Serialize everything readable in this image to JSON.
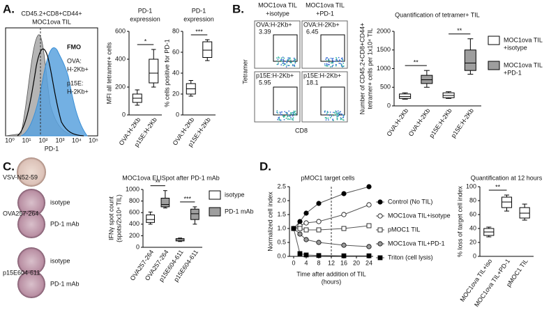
{
  "panels": [
    "A.",
    "B.",
    "C.",
    "D."
  ],
  "histogram": {
    "title": [
      "CD45.2+CD8+CD44+",
      "MOC1ova TIL"
    ],
    "xlabel": "PD-1",
    "xtick_labels": [
      "10⁰",
      "10¹",
      "10²",
      "10³",
      "10⁴",
      "10⁵"
    ],
    "legend": [
      {
        "lines": [
          "FMO"
        ],
        "color": "#000000"
      },
      {
        "lines": [
          "OVA:",
          "H-2Kb+"
        ],
        "color": "#8a8a8a"
      },
      {
        "lines": [
          "p15E:",
          "H-2Kb+"
        ],
        "color": "#3a8fd6"
      }
    ]
  },
  "flow": {
    "headers": [
      [
        "MOC1ova TIL",
        "+isotype"
      ],
      [
        "MOC1ova TIL",
        "+PD-1"
      ]
    ],
    "ylabel": "Tetramer",
    "xlabel": "CD8",
    "gates": [
      {
        "label": "OVA:H-2Kb+",
        "value": 3.39
      },
      {
        "label": "OVA:H-2Kb+",
        "value": 6.45
      },
      {
        "label": "p15E:H-2Kb+",
        "value": 5.95
      },
      {
        "label": "p15E:H-2Kb+",
        "value": 18.1
      }
    ]
  },
  "elispot": {
    "rows": [
      "VSV-N52-59",
      "OVA257-264",
      "p15E604-611"
    ],
    "wells": [
      "isotype",
      "PD-1 mAb",
      "isotype",
      "PD-1 mAb"
    ]
  },
  "chart_data": [
    {
      "type": "box",
      "title": [
        "PD-1",
        "expression"
      ],
      "ylabel": [
        "MFI all tetramer+ cells"
      ],
      "categories": [
        "OVA:H-2Kb",
        "p15E:H-2Kb"
      ],
      "boxes": [
        {
          "min": 70,
          "q1": 90,
          "median": 120,
          "q3": 150,
          "max": 180
        },
        {
          "min": 200,
          "q1": 230,
          "median": 300,
          "q3": 400,
          "max": 470
        }
      ],
      "colors": [
        "#ffffff",
        "#ffffff"
      ],
      "ylim": [
        0,
        600
      ],
      "yticks": [
        0,
        200,
        400,
        600
      ],
      "annotations": [
        {
          "text": "*",
          "between": [
            0,
            1
          ]
        }
      ]
    },
    {
      "type": "box",
      "title": [
        "PD-1",
        "expression"
      ],
      "ylabel": [
        "% cells positive for PD-1"
      ],
      "categories": [
        "OVA:H-2Kb",
        "p15E:H-2Kb"
      ],
      "boxes": [
        {
          "min": 18,
          "q1": 20,
          "median": 25,
          "q3": 30,
          "max": 33
        },
        {
          "min": 52,
          "q1": 55,
          "median": 62,
          "q3": 70,
          "max": 72
        }
      ],
      "colors": [
        "#ffffff",
        "#ffffff"
      ],
      "ylim": [
        0,
        80
      ],
      "yticks": [
        0,
        20,
        40,
        60,
        80
      ],
      "annotations": [
        {
          "text": "***",
          "between": [
            0,
            1
          ]
        }
      ]
    },
    {
      "type": "box",
      "title": [
        "Quantification of tetramer+ TIL"
      ],
      "ylabel": [
        "Number of CD45.2+CD8+CD44+",
        "tetramer+ cells per 1x10⁴ TIL"
      ],
      "categories": [
        "OVA:H-2Kb",
        "OVA:H-2Kb",
        "p15E:H-2Kb",
        "p15E:H-2Kb"
      ],
      "boxes": [
        {
          "min": 180,
          "q1": 200,
          "median": 250,
          "q3": 320,
          "max": 350
        },
        {
          "min": 500,
          "q1": 600,
          "median": 700,
          "q3": 820,
          "max": 950
        },
        {
          "min": 200,
          "q1": 220,
          "median": 280,
          "q3": 350,
          "max": 380
        },
        {
          "min": 850,
          "q1": 950,
          "median": 1150,
          "q3": 1500,
          "max": 1800
        }
      ],
      "colors": [
        "#ffffff",
        "#9e9e9e",
        "#ffffff",
        "#9e9e9e"
      ],
      "ylim": [
        0,
        2000
      ],
      "yticks": [
        0,
        500,
        1000,
        1500,
        2000
      ],
      "annotations": [
        {
          "text": "**",
          "between": [
            0,
            1
          ]
        },
        {
          "text": "**",
          "between": [
            2,
            3
          ]
        }
      ],
      "legend": [
        {
          "lines": [
            "MOC1ova TIL",
            "+isotype"
          ],
          "color": "#ffffff"
        },
        {
          "lines": [
            "MOC1ova TIL",
            "+PD-1"
          ],
          "color": "#9e9e9e"
        }
      ]
    },
    {
      "type": "box",
      "title": [
        "MOC1ova ELISpot after PD-1 mAb"
      ],
      "ylabel": [
        "IFNγ spot count",
        "(spots/2x10⁴ TIL)"
      ],
      "categories": [
        "OVA257-264",
        "OVA257-264",
        "p15E604-611",
        "p15E604-611"
      ],
      "boxes": [
        {
          "min": 400,
          "q1": 430,
          "median": 480,
          "q3": 560,
          "max": 610
        },
        {
          "min": 680,
          "q1": 700,
          "median": 740,
          "q3": 850,
          "max": 980
        },
        {
          "min": 100,
          "q1": 110,
          "median": 130,
          "q3": 150,
          "max": 160
        },
        {
          "min": 400,
          "q1": 480,
          "median": 580,
          "q3": 660,
          "max": 700
        }
      ],
      "colors": [
        "#ffffff",
        "#9e9e9e",
        "#ffffff",
        "#9e9e9e"
      ],
      "ylim": [
        0,
        1000
      ],
      "yticks": [
        0,
        200,
        400,
        600,
        800,
        1000
      ],
      "annotations": [
        {
          "text": "**",
          "between": [
            0,
            1
          ]
        },
        {
          "text": "***",
          "between": [
            2,
            3
          ]
        }
      ],
      "legend": [
        {
          "lines": [
            "isotype"
          ],
          "color": "#ffffff"
        },
        {
          "lines": [
            "PD-1 mAb"
          ],
          "color": "#9e9e9e"
        }
      ]
    },
    {
      "type": "line",
      "title": [
        "pMOC1 target cells"
      ],
      "ylabel": [
        "Normalized cell index"
      ],
      "xlabel": [
        "Time after addition of TIL",
        "(hours)"
      ],
      "x": [
        0,
        2,
        4,
        8,
        16,
        24
      ],
      "xlim": [
        0,
        24
      ],
      "xticks": [
        0,
        4,
        8,
        12,
        16,
        20,
        24
      ],
      "ylim": [
        0,
        2.5
      ],
      "yticks": [
        {
          "value": 0,
          "label": "0.0"
        },
        0.5,
        {
          "value": 1,
          "label": "1.0"
        },
        1.5,
        {
          "value": 2,
          "label": "2.0"
        },
        2.5
      ],
      "vline": 12,
      "series": [
        {
          "name": "Control (No TIL)",
          "color": "#000000",
          "marker": "circle",
          "values": [
            1.0,
            1.25,
            1.55,
            1.9,
            2.25,
            2.5
          ]
        },
        {
          "name": "MOC1ova TIL+isotype",
          "color": "#ffffff",
          "marker": "circle",
          "values": [
            1.0,
            1.1,
            1.2,
            1.25,
            1.5,
            1.85
          ]
        },
        {
          "name": "pMOC1 TIL",
          "color": "#ffffff",
          "marker": "square",
          "values": [
            1.0,
            1.0,
            0.95,
            0.95,
            1.0,
            1.1
          ]
        },
        {
          "name": "MOC1ova TIL+PD-1",
          "color": "#9a9a9a",
          "marker": "circle",
          "values": [
            1.0,
            0.8,
            0.6,
            0.5,
            0.4,
            0.35
          ]
        },
        {
          "name": "Triton (cell lysis)",
          "color": "#000000",
          "marker": "square",
          "values": [
            1.0,
            0.1,
            0.05,
            0.03,
            0.02,
            0.02
          ]
        }
      ]
    },
    {
      "type": "box",
      "title": [
        "Quantification at 12 hours"
      ],
      "ylabel": [
        "% loss of target cell index"
      ],
      "categories": [
        "MOC1ova TIL+iso",
        "MOC1ova TIL+PD-1",
        "pMOC1 TIL"
      ],
      "boxes": [
        {
          "min": 28,
          "q1": 30,
          "median": 35,
          "q3": 40,
          "max": 42
        },
        {
          "min": 65,
          "q1": 70,
          "median": 78,
          "q3": 85,
          "max": 88
        },
        {
          "min": 52,
          "q1": 55,
          "median": 62,
          "q3": 70,
          "max": 75
        }
      ],
      "colors": [
        "#ffffff",
        "#ffffff",
        "#ffffff"
      ],
      "ylim": [
        0,
        100
      ],
      "yticks": [
        0,
        20,
        40,
        60,
        80,
        100
      ],
      "annotations": [
        {
          "text": "**",
          "between": [
            0,
            1
          ]
        }
      ]
    }
  ]
}
